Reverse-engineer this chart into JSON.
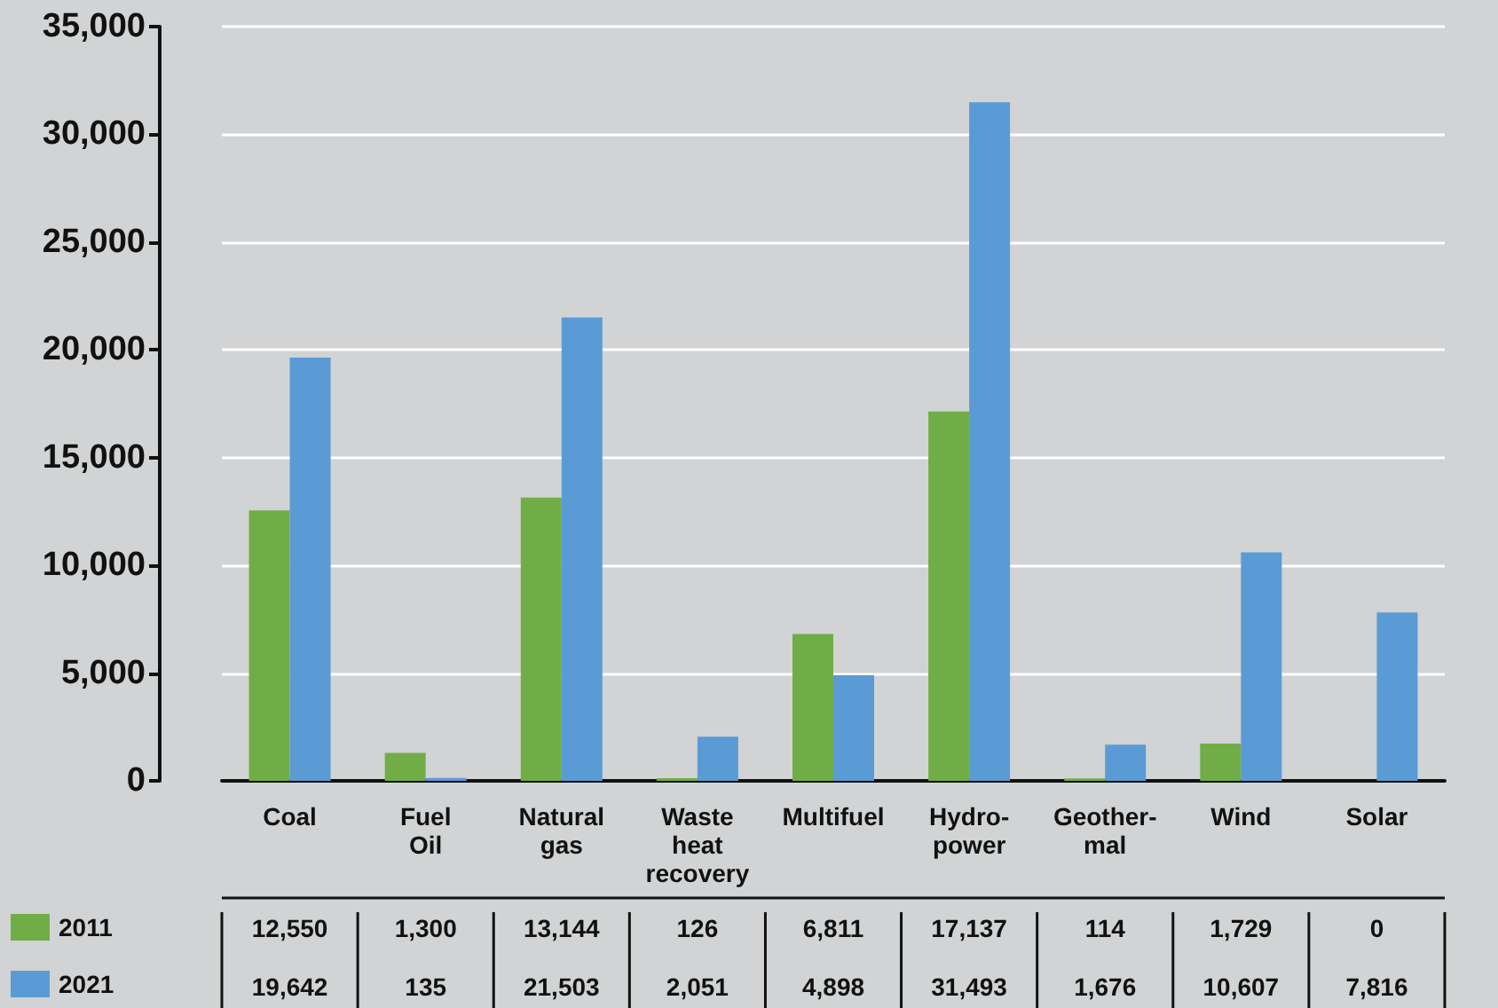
{
  "chart_data": {
    "type": "bar",
    "categories": [
      "Coal",
      "Fuel\nOil",
      "Natural\ngas",
      "Waste\nheat\nrecovery",
      "Multifuel",
      "Hydro-\npower",
      "Geother-\nmal",
      "Wind",
      "Solar"
    ],
    "series": [
      {
        "name": "2011",
        "color": "#70ad47",
        "values": [
          12550,
          1300,
          13144,
          126,
          6811,
          17137,
          114,
          1729,
          0
        ],
        "value_labels": [
          "12,550",
          "1,300",
          "13,144",
          "126",
          "6,811",
          "17,137",
          "114",
          "1,729",
          "0"
        ]
      },
      {
        "name": "2021",
        "color": "#5b9bd5",
        "values": [
          19642,
          135,
          21503,
          2051,
          4898,
          31493,
          1676,
          10607,
          7816
        ],
        "value_labels": [
          "19,642",
          "135",
          "21,503",
          "2,051",
          "4,898",
          "31,493",
          "1,676",
          "10,607",
          "7,816"
        ]
      }
    ],
    "ylim": [
      0,
      35000
    ],
    "yticks": [
      0,
      {
        "value": 5000,
        "label": "5,000"
      },
      {
        "value": 10000,
        "label": "10,000"
      },
      {
        "value": 15000,
        "label": "15,000"
      },
      {
        "value": 20000,
        "label": "20,000"
      },
      {
        "value": 25000,
        "label": "25,000"
      },
      {
        "value": 30000,
        "label": "30,000"
      },
      {
        "value": 35000,
        "label": "35,000"
      }
    ],
    "grid": "y",
    "legend": "bottom left"
  }
}
